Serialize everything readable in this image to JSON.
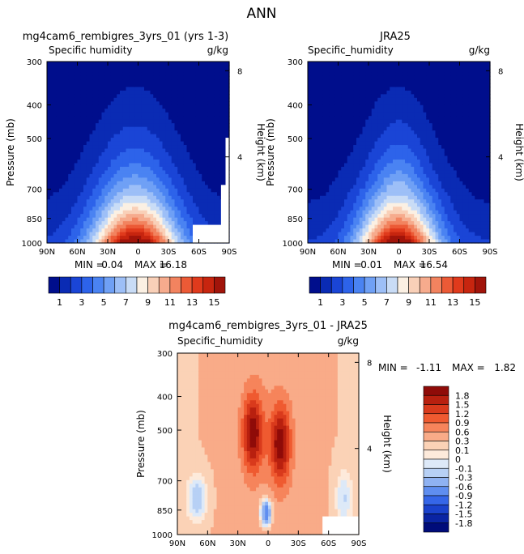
{
  "page_title": "ANN",
  "chart_data": [
    {
      "type": "heatmap",
      "title": "mg4cam6_rembigres_3yrs_01 (yrs 1-3)",
      "variable_label": "Specific humidity",
      "units": "g/kg",
      "ylabel": "Pressure (mb)",
      "y2label": "Height (km)",
      "x_ticks": [
        "90N",
        "60N",
        "30N",
        "0",
        "30S",
        "60S",
        "90S"
      ],
      "y_ticks": [
        "300",
        "400",
        "500",
        "700",
        "850",
        "1000"
      ],
      "y2_ticks": [
        "8",
        "4"
      ],
      "min_label": "MIN =",
      "min_value": "0.04",
      "max_label": "MAX =",
      "max_value": "16.18",
      "min": 0.04,
      "max": 16.18,
      "contour_levels": [
        1,
        2,
        3,
        4,
        5,
        6,
        7,
        8,
        9,
        10,
        11,
        12,
        13,
        14,
        15
      ]
    },
    {
      "type": "heatmap",
      "title": "JRA25",
      "variable_label": "Specific_humidity",
      "units": "g/kg",
      "ylabel": "Pressure (mb)",
      "y2label": "Height (km)",
      "x_ticks": [
        "90N",
        "60N",
        "30N",
        "0",
        "30S",
        "60S",
        "90S"
      ],
      "y_ticks": [
        "300",
        "400",
        "500",
        "700",
        "850",
        "1000"
      ],
      "y2_ticks": [
        "8",
        "4"
      ],
      "min_label": "MIN =",
      "min_value": "0.01",
      "max_label": "MAX =",
      "max_value": "16.54",
      "min": 0.01,
      "max": 16.54,
      "contour_levels": [
        1,
        2,
        3,
        4,
        5,
        6,
        7,
        8,
        9,
        10,
        11,
        12,
        13,
        14,
        15
      ]
    },
    {
      "type": "heatmap",
      "title": "mg4cam6_rembigres_3yrs_01 - JRA25",
      "variable_label": "Specific_humidity",
      "units": "g/kg",
      "ylabel": "Pressure (mb)",
      "y2label": "Height (km)",
      "x_ticks": [
        "90N",
        "60N",
        "30N",
        "0",
        "30S",
        "60S",
        "90S"
      ],
      "y_ticks": [
        "300",
        "400",
        "500",
        "700",
        "850",
        "1000"
      ],
      "y2_ticks": [
        "8",
        "4"
      ],
      "min_label": "MIN =",
      "min_value": "-1.11",
      "max_label": "MAX =",
      "max_value": "1.82",
      "min": -1.11,
      "max": 1.82,
      "contour_levels": [
        -1.8,
        -1.5,
        -1.2,
        -0.9,
        -0.6,
        -0.3,
        -0.1,
        0,
        0.1,
        0.3,
        0.6,
        0.9,
        1.2,
        1.5,
        1.8
      ]
    }
  ],
  "colorbar_top": {
    "labels": [
      "1",
      "3",
      "5",
      "7",
      "9",
      "11",
      "13",
      "15"
    ],
    "colors": [
      "#000e8c",
      "#0a2bb4",
      "#1a45d6",
      "#2d63ea",
      "#4a83f2",
      "#6fa0f5",
      "#9dbff7",
      "#c9dcf6",
      "#fbf0e3",
      "#f9d0b8",
      "#f6ab8d",
      "#f2835f",
      "#ec5a36",
      "#e03a1c",
      "#c7250f",
      "#a1140a"
    ]
  },
  "colorbar_diff": {
    "labels": [
      "1.8",
      "1.5",
      "1.2",
      "0.9",
      "0.6",
      "0.3",
      "0.1",
      "0",
      "-0.1",
      "-0.3",
      "-0.6",
      "-0.9",
      "-1.2",
      "-1.5",
      "-1.8"
    ],
    "colors": [
      "#8f0b08",
      "#b8200f",
      "#d93a1c",
      "#ef5a30",
      "#f6845b",
      "#f9ab88",
      "#fbd2b6",
      "#fdeadb",
      "#dde9f8",
      "#b7d0f5",
      "#8fb2f2",
      "#5f8ef0",
      "#3566e8",
      "#1a42cc",
      "#0a24a3",
      "#000c7a"
    ]
  },
  "colors": {
    "background_dark": "#000c8f",
    "axis": "#000000"
  }
}
